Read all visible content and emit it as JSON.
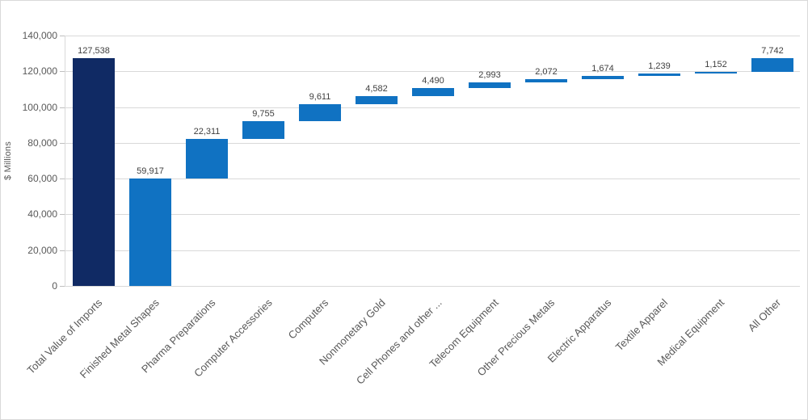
{
  "chart_data": {
    "type": "bar",
    "subtype": "waterfall",
    "title": "",
    "xlabel": "",
    "ylabel": "$ Millions",
    "ylim": [
      0,
      140000
    ],
    "grid": true,
    "legend": "none",
    "yticks": [
      {
        "value": 0,
        "label": "0"
      },
      {
        "value": 20000,
        "label": "20,000"
      },
      {
        "value": 40000,
        "label": "40,000"
      },
      {
        "value": 60000,
        "label": "60,000"
      },
      {
        "value": 80000,
        "label": "80,000"
      },
      {
        "value": 100000,
        "label": "100,000"
      },
      {
        "value": 120000,
        "label": "120,000"
      },
      {
        "value": 140000,
        "label": "140,000"
      }
    ],
    "categories": [
      "Total Value of Imports",
      "Finished Metal Shapes",
      "Pharma Preparations",
      "Computer Accessories",
      "Computers",
      "Nonmonetary Gold",
      "Cell Phones and other ...",
      "Telecom Equipment",
      "Other Precious Metals",
      "Electric Apparatus",
      "Textile Apparel",
      "Medical Equipment",
      "All Other"
    ],
    "bars": [
      {
        "label": "Total Value of Imports",
        "value": 127538,
        "display": "127,538",
        "start": 0,
        "end": 127538,
        "role": "total"
      },
      {
        "label": "Finished Metal Shapes",
        "value": 59917,
        "display": "59,917",
        "start": 0,
        "end": 59917,
        "role": "segment"
      },
      {
        "label": "Pharma Preparations",
        "value": 22311,
        "display": "22,311",
        "start": 59917,
        "end": 82228,
        "role": "segment"
      },
      {
        "label": "Computer Accessories",
        "value": 9755,
        "display": "9,755",
        "start": 82228,
        "end": 91983,
        "role": "segment"
      },
      {
        "label": "Computers",
        "value": 9611,
        "display": "9,611",
        "start": 91983,
        "end": 101594,
        "role": "segment"
      },
      {
        "label": "Nonmonetary Gold",
        "value": 4582,
        "display": "4,582",
        "start": 101594,
        "end": 106176,
        "role": "segment"
      },
      {
        "label": "Cell Phones and other ...",
        "value": 4490,
        "display": "4,490",
        "start": 106176,
        "end": 110666,
        "role": "segment"
      },
      {
        "label": "Telecom Equipment",
        "value": 2993,
        "display": "2,993",
        "start": 110666,
        "end": 113659,
        "role": "segment"
      },
      {
        "label": "Other Precious Metals",
        "value": 2072,
        "display": "2,072",
        "start": 113659,
        "end": 115731,
        "role": "segment"
      },
      {
        "label": "Electric Apparatus",
        "value": 1674,
        "display": "1,674",
        "start": 115731,
        "end": 117405,
        "role": "segment"
      },
      {
        "label": "Textile Apparel",
        "value": 1239,
        "display": "1,239",
        "start": 117405,
        "end": 118644,
        "role": "segment"
      },
      {
        "label": "Medical Equipment",
        "value": 1152,
        "display": "1,152",
        "start": 118644,
        "end": 119796,
        "role": "segment"
      },
      {
        "label": "All Other",
        "value": 7742,
        "display": "7,742",
        "start": 119796,
        "end": 127538,
        "role": "segment"
      }
    ],
    "colors": {
      "total_bar": "#102a64",
      "segment_bar": "#1072c2",
      "gridline": "#d9d9d9",
      "axis_text": "#595959",
      "data_label_text": "#404040"
    }
  }
}
